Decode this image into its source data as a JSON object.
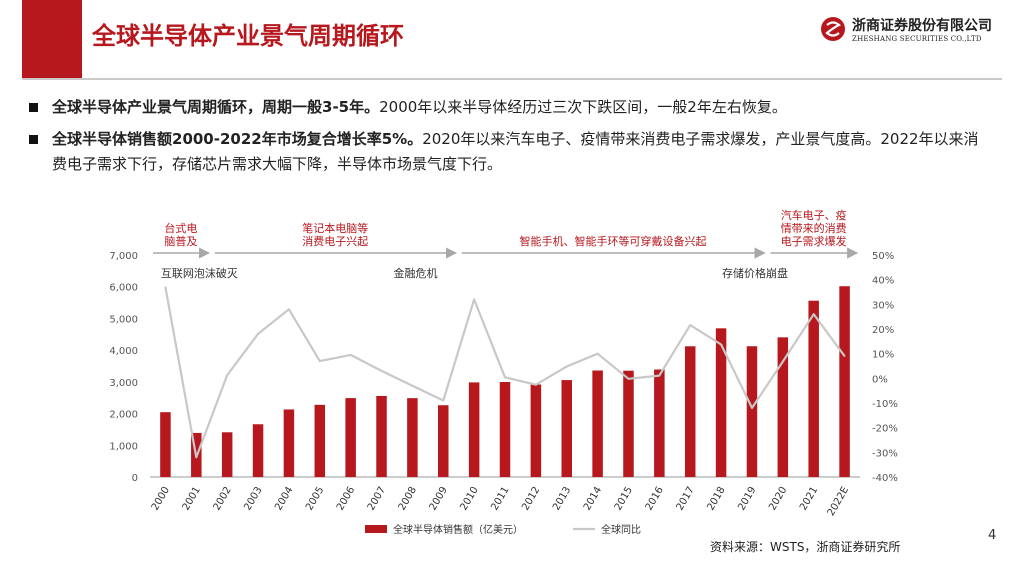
{
  "header": {
    "title": "全球半导体产业景气周期循环",
    "logo_cn": "浙商证券股份有限公司",
    "logo_en": "ZHESHANG SECURITIES CO.,LTD"
  },
  "bullets": [
    {
      "bold": "全球半导体产业景气周期循环，周期一般3-5年。",
      "text": "2000年以来半导体经历过三次下跌区间，一般2年左右恢复。"
    },
    {
      "bold": "全球半导体销售额2000-2022年市场复合增长率5%。",
      "text": "2020年以来汽车电子、疫情带来消费电子需求爆发，产业景气度高。2022年以来消费电子需求下行，存储芯片需求大幅下降，半导体市场景气度下行。"
    }
  ],
  "colors": {
    "accent": "#b7181e",
    "line": "#c8c8c8",
    "arrow": "#a8a8a8",
    "axis_text": "#555555"
  },
  "chart_data": {
    "type": "bar",
    "categories": [
      "2000",
      "2001",
      "2002",
      "2003",
      "2004",
      "2005",
      "2006",
      "2007",
      "2008",
      "2009",
      "2010",
      "2011",
      "2012",
      "2013",
      "2014",
      "2015",
      "2016",
      "2017",
      "2018",
      "2019",
      "2020",
      "2021",
      "2022E"
    ],
    "series": [
      {
        "name": "全球半导体销售额（亿美元）",
        "type": "bar",
        "axis": "left",
        "values": [
          2044,
          1390,
          1410,
          1663,
          2130,
          2275,
          2488,
          2556,
          2486,
          2263,
          2983,
          2995,
          2916,
          3056,
          3358,
          3352,
          3389,
          4122,
          4688,
          4123,
          4404,
          5559,
          6015
        ]
      },
      {
        "name": "全球同比",
        "type": "line",
        "axis": "right",
        "values": [
          37,
          -32,
          1.3,
          18,
          28,
          7,
          9.5,
          3,
          -3,
          -9,
          32,
          0.4,
          -2.6,
          4.8,
          10,
          -0.2,
          1.1,
          21.6,
          13.7,
          -12,
          6.8,
          26,
          9
        ]
      }
    ],
    "yleft": {
      "min": 0,
      "max": 7000,
      "ticks": [
        "0",
        "1,000",
        "2,000",
        "3,000",
        "4,000",
        "5,000",
        "6,000",
        "7,000"
      ]
    },
    "yright": {
      "min": -40,
      "max": 50,
      "ticks": [
        "-40%",
        "-30%",
        "-20%",
        "-10%",
        "0%",
        "10%",
        "20%",
        "30%",
        "40%",
        "50%"
      ]
    },
    "phases": [
      {
        "label": "台式电\n脑普及",
        "from": 0,
        "to": 1
      },
      {
        "label": "笔记本电脑等\n消费电子兴起",
        "from": 2,
        "to": 9
      },
      {
        "label": "智能手机、智能手环等可穿戴设备兴起",
        "from": 10,
        "to": 19
      },
      {
        "label": "汽车电子、疫\n情带来的消费\n电子需求爆发",
        "from": 20,
        "to": 22
      }
    ],
    "annotations": [
      {
        "label": "互联网泡沫破灭",
        "at": 1
      },
      {
        "label": "金融危机",
        "at": 8
      },
      {
        "label": "存储价格崩盘",
        "at": 19
      }
    ],
    "legend": {
      "position": "bottom",
      "bar_label": "全球半导体销售额（亿美元）",
      "line_label": "全球同比"
    }
  },
  "source": "资料来源：WSTS，浙商证券研究所",
  "page_number": "4"
}
